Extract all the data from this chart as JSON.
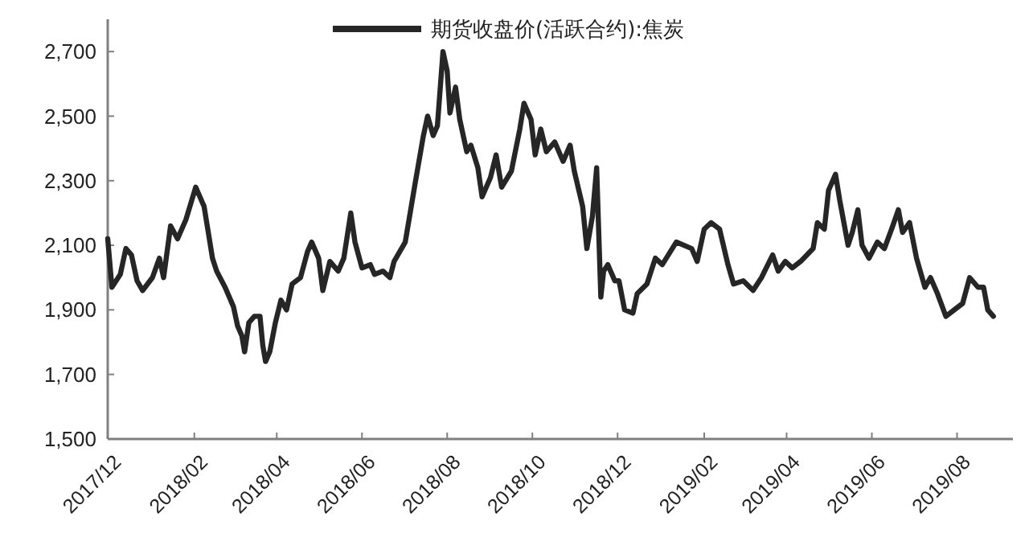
{
  "chart_data": {
    "type": "line",
    "legend": "top",
    "series": [
      {
        "name": "期货收盘价(活跃合约):焦炭",
        "color": "#262626",
        "x": [
          "2017-12-01",
          "2017-12-04",
          "2017-12-10",
          "2017-12-14",
          "2017-12-18",
          "2017-12-22",
          "2017-12-26",
          "2018-01-02",
          "2018-01-07",
          "2018-01-10",
          "2018-01-15",
          "2018-01-20",
          "2018-01-26",
          "2018-02-02",
          "2018-02-08",
          "2018-02-14",
          "2018-02-17",
          "2018-02-23",
          "2018-03-01",
          "2018-03-04",
          "2018-03-07",
          "2018-03-09",
          "2018-03-12",
          "2018-03-16",
          "2018-03-20",
          "2018-03-22",
          "2018-03-24",
          "2018-03-27",
          "2018-03-31",
          "2018-04-04",
          "2018-04-08",
          "2018-04-12",
          "2018-04-18",
          "2018-04-23",
          "2018-04-26",
          "2018-05-01",
          "2018-05-04",
          "2018-05-09",
          "2018-05-15",
          "2018-05-19",
          "2018-05-24",
          "2018-05-27",
          "2018-06-01",
          "2018-06-07",
          "2018-06-10",
          "2018-06-16",
          "2018-06-21",
          "2018-06-24",
          "2018-07-02",
          "2018-07-09",
          "2018-07-15",
          "2018-07-18",
          "2018-07-22",
          "2018-07-25",
          "2018-07-29",
          "2018-08-01",
          "2018-08-03",
          "2018-08-07",
          "2018-08-10",
          "2018-08-15",
          "2018-08-18",
          "2018-08-23",
          "2018-08-26",
          "2018-09-01",
          "2018-09-05",
          "2018-09-09",
          "2018-09-16",
          "2018-09-22",
          "2018-09-25",
          "2018-09-30",
          "2018-10-03",
          "2018-10-07",
          "2018-10-11",
          "2018-10-17",
          "2018-10-23",
          "2018-10-28",
          "2018-10-31",
          "2018-11-06",
          "2018-11-09",
          "2018-11-13",
          "2018-11-16",
          "2018-11-19",
          "2018-11-21",
          "2018-11-24",
          "2018-11-29",
          "2018-12-02",
          "2018-12-06",
          "2018-12-12",
          "2018-12-15",
          "2018-12-22",
          "2018-12-28",
          "2019-01-02",
          "2019-01-12",
          "2019-01-23",
          "2019-01-27",
          "2019-02-01",
          "2019-02-06",
          "2019-02-12",
          "2019-02-18",
          "2019-02-22",
          "2019-03-01",
          "2019-03-08",
          "2019-03-14",
          "2019-03-22",
          "2019-03-26",
          "2019-03-31",
          "2019-04-05",
          "2019-04-11",
          "2019-04-20",
          "2019-04-23",
          "2019-04-28",
          "2019-05-01",
          "2019-05-06",
          "2019-05-09",
          "2019-05-15",
          "2019-05-18",
          "2019-05-22",
          "2019-05-25",
          "2019-05-30",
          "2019-06-05",
          "2019-06-10",
          "2019-06-16",
          "2019-06-20",
          "2019-06-23",
          "2019-06-28",
          "2019-07-03",
          "2019-07-09",
          "2019-07-13",
          "2019-07-18",
          "2019-07-24",
          "2019-07-30",
          "2019-08-05",
          "2019-08-10",
          "2019-08-16",
          "2019-08-20",
          "2019-08-23",
          "2019-08-27"
        ],
        "values": [
          2120,
          1970,
          2010,
          2090,
          2070,
          1990,
          1960,
          2000,
          2060,
          2000,
          2160,
          2120,
          2180,
          2280,
          2220,
          2060,
          2020,
          1970,
          1910,
          1850,
          1820,
          1770,
          1860,
          1880,
          1880,
          1790,
          1740,
          1770,
          1860,
          1930,
          1900,
          1980,
          2000,
          2080,
          2110,
          2060,
          1960,
          2050,
          2020,
          2060,
          2200,
          2110,
          2030,
          2040,
          2010,
          2020,
          2000,
          2050,
          2110,
          2290,
          2440,
          2500,
          2440,
          2470,
          2700,
          2640,
          2510,
          2590,
          2490,
          2390,
          2410,
          2340,
          2250,
          2310,
          2380,
          2280,
          2330,
          2460,
          2540,
          2490,
          2380,
          2460,
          2390,
          2420,
          2360,
          2410,
          2330,
          2220,
          2090,
          2190,
          2340,
          1940,
          2020,
          2040,
          1990,
          1990,
          1900,
          1890,
          1950,
          1980,
          2060,
          2040,
          2110,
          2090,
          2050,
          2150,
          2170,
          2150,
          2040,
          1980,
          1990,
          1960,
          2000,
          2070,
          2020,
          2050,
          2030,
          2050,
          2090,
          2170,
          2150,
          2270,
          2320,
          2240,
          2100,
          2140,
          2210,
          2100,
          2060,
          2110,
          2090,
          2160,
          2210,
          2140,
          2170,
          2060,
          1970,
          2000,
          1950,
          1880,
          1900,
          1920,
          2000,
          1970,
          1970,
          1900,
          1880
        ]
      }
    ],
    "xlim": [
      "2017-12-01",
      "2019-09-10"
    ],
    "xticks": [
      {
        "value": "2017-12-01",
        "label": "2017/12"
      },
      {
        "value": "2018-02-01",
        "label": "2018/02"
      },
      {
        "value": "2018-04-01",
        "label": "2018/04"
      },
      {
        "value": "2018-06-01",
        "label": "2018/06"
      },
      {
        "value": "2018-08-01",
        "label": "2018/08"
      },
      {
        "value": "2018-10-01",
        "label": "2018/10"
      },
      {
        "value": "2018-12-01",
        "label": "2018/12"
      },
      {
        "value": "2019-02-01",
        "label": "2019/02"
      },
      {
        "value": "2019-04-01",
        "label": "2019/04"
      },
      {
        "value": "2019-06-01",
        "label": "2019/06"
      },
      {
        "value": "2019-08-01",
        "label": "2019/08"
      }
    ],
    "ylim": [
      1500,
      2800
    ],
    "yticks": [
      {
        "value": 1500,
        "label": "1,500"
      },
      {
        "value": 1700,
        "label": "1,700"
      },
      {
        "value": 1900,
        "label": "1,900"
      },
      {
        "value": 2100,
        "label": "2,100"
      },
      {
        "value": 2300,
        "label": "2,300"
      },
      {
        "value": 2500,
        "label": "2,500"
      },
      {
        "value": 2700,
        "label": "2,700"
      }
    ],
    "grid": false,
    "marker": "none",
    "line_style": "solid"
  }
}
